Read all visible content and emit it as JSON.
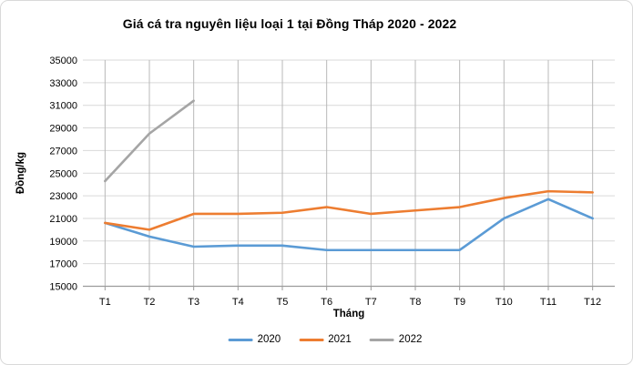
{
  "chart_data": {
    "type": "line",
    "title": "Giá cá tra nguyên liệu loại 1 tại Đồng Tháp 2020 - 2022",
    "xlabel": "Tháng",
    "ylabel": "Đồng/kg",
    "categories": [
      "T1",
      "T2",
      "T3",
      "T4",
      "T5",
      "T6",
      "T7",
      "T8",
      "T9",
      "T10",
      "T11",
      "T12"
    ],
    "y_axis": {
      "min": 15000,
      "max": 35000,
      "step": 2000
    },
    "grid": true,
    "legend_position": "bottom-center",
    "series": [
      {
        "name": "2020",
        "color": "#5B9BD5",
        "values": [
          20600,
          19400,
          18500,
          18600,
          18600,
          18200,
          18200,
          18200,
          18200,
          21000,
          22700,
          21000
        ]
      },
      {
        "name": "2021",
        "color": "#ED7D31",
        "values": [
          20600,
          20000,
          21400,
          21400,
          21500,
          22000,
          21400,
          21700,
          22000,
          22800,
          23400,
          23300
        ]
      },
      {
        "name": "2022",
        "color": "#A5A5A5",
        "values": [
          24300,
          28500,
          31400,
          null,
          null,
          null,
          null,
          null,
          null,
          null,
          null,
          null
        ]
      }
    ],
    "colors": {
      "background": "#FFFFFF",
      "border": "#D9D9D9",
      "gridline_horizontal": "#D9D9D9",
      "gridline_vertical": "#B8B8B8",
      "axis_line": "#9B9B9B",
      "text": "#000000"
    }
  }
}
